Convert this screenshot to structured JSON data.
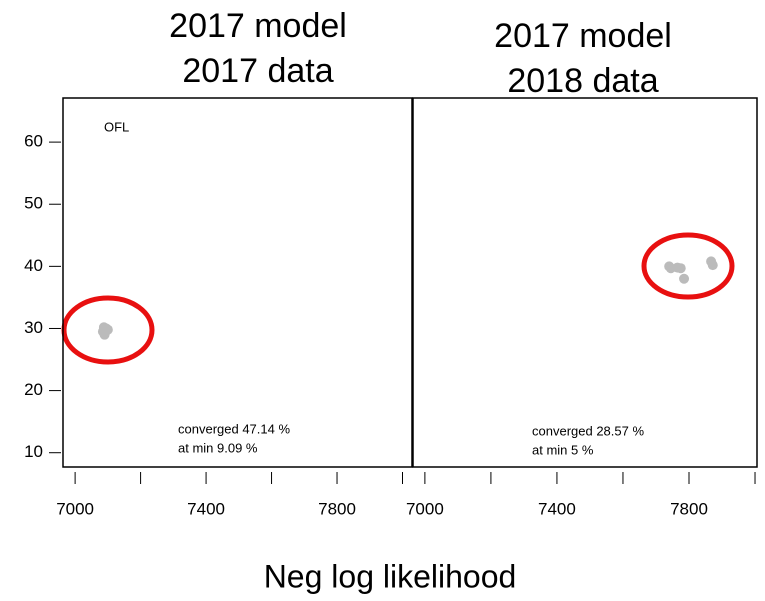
{
  "x_label": "Neg log likelihood",
  "chart_data": [
    {
      "type": "scatter",
      "title": [
        "2017 model",
        "2017 data"
      ],
      "color": "#bbbbbb",
      "x": [
        7085,
        7095,
        7090,
        7100,
        7088
      ],
      "values": [
        29.5,
        30,
        29,
        29.8,
        30.2
      ],
      "xlim": [
        6963,
        8029
      ],
      "ylim": [
        7.7,
        67.1
      ],
      "xticks": [
        7000,
        7400,
        7800
      ],
      "xminorticks": [
        7200,
        7600,
        8000
      ],
      "yticks": [
        10,
        20,
        30,
        40,
        50,
        60
      ],
      "annotations": [
        "OFL",
        "converged  47.14 %",
        "at min  9.09 %"
      ]
    },
    {
      "type": "scatter",
      "title": [
        "2017 model",
        "2018 data"
      ],
      "color": "#bbbbbb",
      "x": [
        7740,
        7745,
        7765,
        7775,
        7785,
        7867,
        7872
      ],
      "values": [
        40,
        39.7,
        39.8,
        39.7,
        38,
        40.8,
        40.2
      ],
      "xlim": [
        6964,
        8006
      ],
      "ylim": [
        7.7,
        67.1
      ],
      "xticks": [
        7000,
        7400,
        7800
      ],
      "xminorticks": [
        7200,
        7600,
        8000
      ],
      "annotations": [
        "converged  28.57 %",
        "at min  5 %"
      ]
    }
  ]
}
